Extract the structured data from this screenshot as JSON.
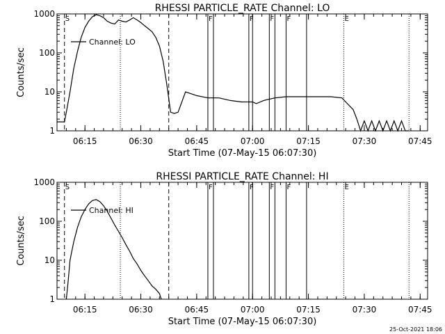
{
  "timestamp": "25-Oct-2021 18:06",
  "chart_data": [
    {
      "type": "line",
      "title": "RHESSI PARTICLE_RATE Channel: LO",
      "xlabel": "Start Time (07-May-15 06:07:30)",
      "ylabel": "Counts/sec",
      "yscale": "log",
      "ylim": [
        1,
        1000
      ],
      "xlim": [
        "06:07:30",
        "07:47:00"
      ],
      "x_ticks": [
        "06:15",
        "06:30",
        "06:45",
        "07:00",
        "07:15",
        "07:30",
        "07:45"
      ],
      "y_ticks": [
        "1",
        "10",
        "100",
        "1000"
      ],
      "legend": {
        "entries": [
          "Channel: LO"
        ],
        "position": "top-left"
      },
      "markers": [
        {
          "label": "S",
          "time": "06:09:30",
          "style": "dashed"
        },
        {
          "label": "",
          "time": "06:37:30",
          "style": "dashed"
        },
        {
          "label": "",
          "time": "06:24:30",
          "style": "dotted"
        },
        {
          "label": "F",
          "time": "06:48:00",
          "style": "solid"
        },
        {
          "label": "",
          "time": "06:49:30",
          "style": "solid"
        },
        {
          "label": "F",
          "time": "06:59:00",
          "style": "solid"
        },
        {
          "label": "",
          "time": "07:00:00",
          "style": "solid"
        },
        {
          "label": "F",
          "time": "07:04:30",
          "style": "solid"
        },
        {
          "label": "",
          "time": "07:06:00",
          "style": "solid"
        },
        {
          "label": "F",
          "time": "07:09:00",
          "style": "solid"
        },
        {
          "label": "",
          "time": "07:14:30",
          "style": "solid"
        },
        {
          "label": "E",
          "time": "07:24:30",
          "style": "dotted"
        },
        {
          "label": "",
          "time": "07:42:00",
          "style": "dotted"
        }
      ],
      "series": [
        {
          "name": "Channel: LO",
          "x": [
            "06:07:30",
            "06:09:30",
            "06:10:00",
            "06:11:00",
            "06:12:00",
            "06:13:00",
            "06:14:00",
            "06:15:00",
            "06:16:00",
            "06:17:00",
            "06:18:00",
            "06:19:00",
            "06:20:00",
            "06:21:00",
            "06:22:00",
            "06:23:00",
            "06:24:00",
            "06:25:00",
            "06:26:00",
            "06:27:00",
            "06:28:00",
            "06:29:00",
            "06:30:00",
            "06:31:00",
            "06:32:00",
            "06:33:00",
            "06:34:00",
            "06:35:00",
            "06:36:00",
            "06:37:00",
            "06:38:00",
            "06:39:00",
            "06:40:00",
            "06:42:00",
            "06:45:00",
            "06:48:00",
            "06:51:00",
            "06:54:00",
            "06:57:00",
            "07:00:00",
            "07:01:00",
            "07:03:00",
            "07:06:00",
            "07:09:00",
            "07:12:00",
            "07:15:00",
            "07:18:00",
            "07:21:00",
            "07:24:00",
            "07:25:00",
            "07:27:00",
            "07:28:00",
            "07:29:00",
            "07:30:00",
            "07:31:00",
            "07:32:00",
            "07:33:00",
            "07:34:00",
            "07:35:00",
            "07:36:00",
            "07:37:00",
            "07:38:00",
            "07:39:00",
            "07:40:00",
            "07:41:00",
            "07:42:00"
          ],
          "y": [
            1.7,
            1.7,
            3,
            10,
            40,
            110,
            250,
            450,
            650,
            850,
            950,
            900,
            800,
            650,
            580,
            550,
            700,
            650,
            620,
            700,
            800,
            700,
            600,
            500,
            420,
            350,
            250,
            150,
            60,
            15,
            3,
            2.8,
            3,
            10,
            8,
            7,
            7,
            6,
            5.5,
            5.5,
            5,
            6,
            7,
            7.5,
            7.5,
            7.5,
            7.5,
            7.5,
            7,
            5.5,
            3.5,
            2,
            1,
            1.8,
            1,
            1.8,
            1,
            1.8,
            1,
            1.8,
            1,
            1.8,
            1,
            1.8,
            1,
            1
          ]
        }
      ]
    },
    {
      "type": "line",
      "title": "RHESSI PARTICLE_RATE Channel: HI",
      "xlabel": "Start Time (07-May-15 06:07:30)",
      "ylabel": "Counts/sec",
      "yscale": "log",
      "ylim": [
        1,
        1000
      ],
      "xlim": [
        "06:07:30",
        "07:47:00"
      ],
      "x_ticks": [
        "06:15",
        "06:30",
        "06:45",
        "07:00",
        "07:15",
        "07:30",
        "07:45"
      ],
      "y_ticks": [
        "1",
        "10",
        "100",
        "1000"
      ],
      "legend": {
        "entries": [
          "Channel: HI"
        ],
        "position": "top-left"
      },
      "markers": [
        {
          "label": "S",
          "time": "06:09:30",
          "style": "dashed"
        },
        {
          "label": "",
          "time": "06:37:30",
          "style": "dashed"
        },
        {
          "label": "",
          "time": "06:24:30",
          "style": "dotted"
        },
        {
          "label": "F",
          "time": "06:48:00",
          "style": "solid"
        },
        {
          "label": "",
          "time": "06:49:30",
          "style": "solid"
        },
        {
          "label": "F",
          "time": "06:59:00",
          "style": "solid"
        },
        {
          "label": "",
          "time": "07:00:00",
          "style": "solid"
        },
        {
          "label": "F",
          "time": "07:04:30",
          "style": "solid"
        },
        {
          "label": "",
          "time": "07:06:00",
          "style": "solid"
        },
        {
          "label": "F",
          "time": "07:09:00",
          "style": "solid"
        },
        {
          "label": "",
          "time": "07:14:30",
          "style": "solid"
        },
        {
          "label": "E",
          "time": "07:24:30",
          "style": "dotted"
        },
        {
          "label": "",
          "time": "07:42:00",
          "style": "dotted"
        }
      ],
      "series": [
        {
          "name": "Channel: HI",
          "x": [
            "06:10:00",
            "06:10:30",
            "06:11:00",
            "06:12:00",
            "06:13:00",
            "06:14:00",
            "06:15:00",
            "06:16:00",
            "06:17:00",
            "06:18:00",
            "06:19:00",
            "06:20:00",
            "06:21:00",
            "06:22:00",
            "06:23:00",
            "06:24:00",
            "06:25:00",
            "06:26:00",
            "06:27:00",
            "06:28:00",
            "06:29:00",
            "06:30:00",
            "06:31:00",
            "06:32:00",
            "06:33:00",
            "06:34:00",
            "06:35:00",
            "06:35:30"
          ],
          "y": [
            1,
            3,
            10,
            30,
            70,
            130,
            200,
            280,
            340,
            360,
            320,
            250,
            180,
            120,
            80,
            55,
            38,
            25,
            17,
            11,
            8,
            5.5,
            4,
            3,
            2.2,
            1.8,
            1.4,
            1
          ]
        }
      ]
    }
  ]
}
